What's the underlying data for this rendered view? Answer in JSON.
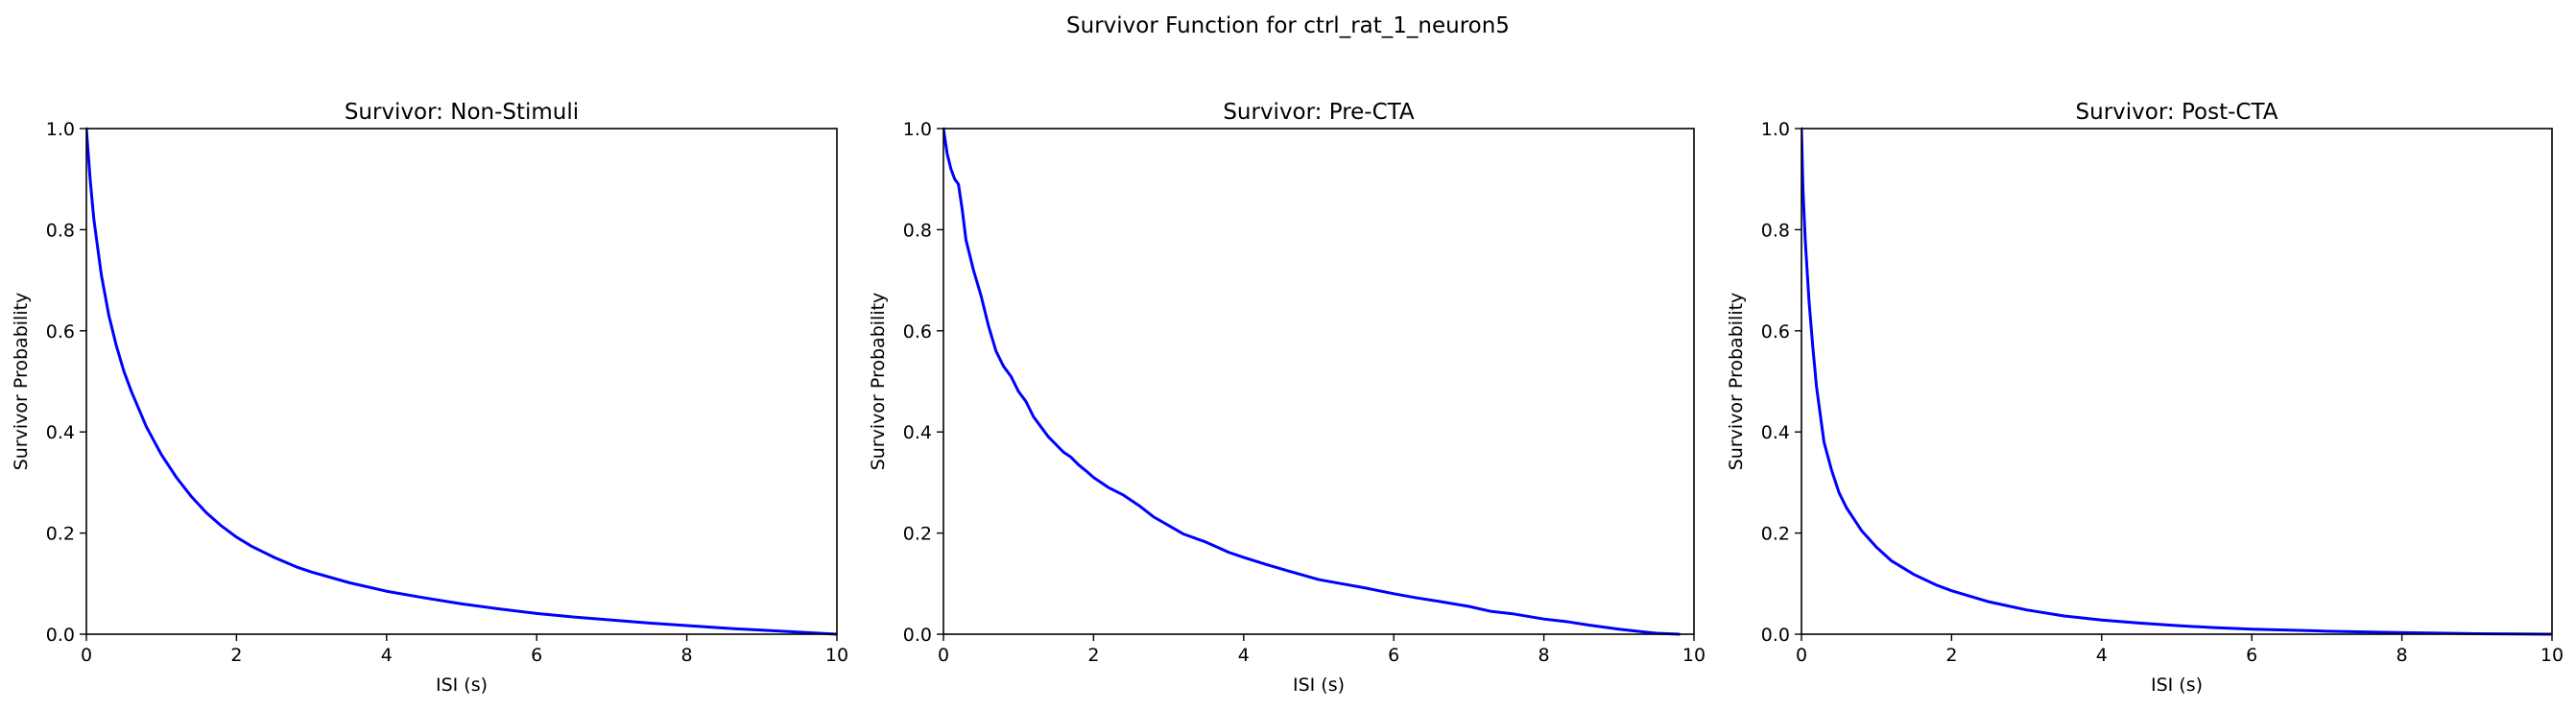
{
  "figure": {
    "suptitle": "Survivor Function for ctrl_rat_1_neuron5"
  },
  "chart_data": [
    {
      "type": "line",
      "title": "Survivor: Non-Stimuli",
      "xlabel": "ISI (s)",
      "ylabel": "Survivor Probability",
      "xlim": [
        0,
        10
      ],
      "ylim": [
        0,
        1
      ],
      "xticks": [
        "0",
        "2",
        "4",
        "6",
        "8",
        "10"
      ],
      "yticks": [
        "0.0",
        "0.2",
        "0.4",
        "0.6",
        "0.8",
        "1.0"
      ],
      "grid": false,
      "color": "#0000ff",
      "series": [
        {
          "x": [
            0,
            0.05,
            0.1,
            0.2,
            0.3,
            0.4,
            0.5,
            0.6,
            0.8,
            1.0,
            1.2,
            1.4,
            1.6,
            1.8,
            2.0,
            2.2,
            2.5,
            2.8,
            3.0,
            3.5,
            4.0,
            4.5,
            5.0,
            5.5,
            6.0,
            6.5,
            7.0,
            7.5,
            8.0,
            8.5,
            9.0,
            9.5,
            10.0
          ],
          "y": [
            1.0,
            0.9,
            0.82,
            0.71,
            0.63,
            0.57,
            0.52,
            0.48,
            0.41,
            0.355,
            0.31,
            0.272,
            0.24,
            0.214,
            0.192,
            0.174,
            0.152,
            0.133,
            0.123,
            0.102,
            0.085,
            0.072,
            0.06,
            0.05,
            0.041,
            0.034,
            0.028,
            0.022,
            0.017,
            0.012,
            0.008,
            0.004,
            0.0
          ]
        }
      ]
    },
    {
      "type": "line",
      "title": "Survivor: Pre-CTA",
      "xlabel": "ISI (s)",
      "ylabel": "Survivor Probability",
      "xlim": [
        0,
        10
      ],
      "ylim": [
        0,
        1
      ],
      "xticks": [
        "0",
        "2",
        "4",
        "6",
        "8",
        "10"
      ],
      "yticks": [
        "0.0",
        "0.2",
        "0.4",
        "0.6",
        "0.8",
        "1.0"
      ],
      "grid": false,
      "color": "#0000ff",
      "series": [
        {
          "x": [
            0,
            0.05,
            0.1,
            0.15,
            0.2,
            0.25,
            0.3,
            0.35,
            0.4,
            0.5,
            0.6,
            0.7,
            0.8,
            0.9,
            1.0,
            1.1,
            1.2,
            1.3,
            1.4,
            1.5,
            1.6,
            1.7,
            1.8,
            1.9,
            2.0,
            2.2,
            2.4,
            2.6,
            2.8,
            3.0,
            3.2,
            3.5,
            3.8,
            4.0,
            4.3,
            4.6,
            5.0,
            5.3,
            5.6,
            6.0,
            6.3,
            6.6,
            7.0,
            7.3,
            7.6,
            8.0,
            8.3,
            8.6,
            9.0,
            9.3,
            9.5,
            9.8
          ],
          "y": [
            1.0,
            0.95,
            0.92,
            0.9,
            0.89,
            0.84,
            0.78,
            0.75,
            0.72,
            0.67,
            0.61,
            0.56,
            0.53,
            0.51,
            0.48,
            0.46,
            0.43,
            0.41,
            0.39,
            0.375,
            0.36,
            0.35,
            0.335,
            0.323,
            0.31,
            0.29,
            0.275,
            0.255,
            0.232,
            0.215,
            0.198,
            0.182,
            0.162,
            0.152,
            0.138,
            0.125,
            0.108,
            0.1,
            0.092,
            0.08,
            0.072,
            0.065,
            0.055,
            0.045,
            0.04,
            0.03,
            0.025,
            0.018,
            0.01,
            0.005,
            0.002,
            0.0
          ]
        }
      ]
    },
    {
      "type": "line",
      "title": "Survivor: Post-CTA",
      "xlabel": "ISI (s)",
      "ylabel": "Survivor Probability",
      "xlim": [
        0,
        10
      ],
      "ylim": [
        0,
        1
      ],
      "xticks": [
        "0",
        "2",
        "4",
        "6",
        "8",
        "10"
      ],
      "yticks": [
        "0.0",
        "0.2",
        "0.4",
        "0.6",
        "0.8",
        "1.0"
      ],
      "grid": false,
      "color": "#0000ff",
      "series": [
        {
          "x": [
            0,
            0.02,
            0.05,
            0.1,
            0.15,
            0.2,
            0.3,
            0.4,
            0.5,
            0.6,
            0.8,
            1.0,
            1.2,
            1.5,
            1.8,
            2.0,
            2.5,
            3.0,
            3.5,
            4.0,
            4.5,
            5.0,
            5.5,
            6.0,
            7.0,
            8.0,
            9.0,
            10.0
          ],
          "y": [
            1.0,
            0.88,
            0.78,
            0.66,
            0.57,
            0.49,
            0.38,
            0.325,
            0.28,
            0.25,
            0.205,
            0.172,
            0.145,
            0.118,
            0.097,
            0.086,
            0.064,
            0.048,
            0.036,
            0.028,
            0.022,
            0.017,
            0.013,
            0.01,
            0.006,
            0.003,
            0.001,
            0.0
          ]
        }
      ]
    }
  ]
}
